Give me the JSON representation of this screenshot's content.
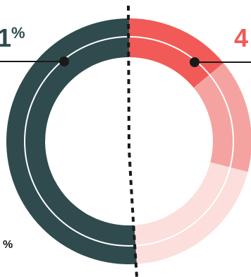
{
  "chart_data": {
    "type": "pie",
    "variant": "donut",
    "slices": [
      {
        "value": 51,
        "color": "#2f4b4e"
      },
      {
        "value": 14,
        "color": "#f25a57"
      },
      {
        "value": 15,
        "color": "#f5a3a1"
      },
      {
        "value": 20,
        "color": "#fcdedd"
      }
    ],
    "labels": {
      "left_value": "1",
      "left_unit": "%",
      "right_value": "4",
      "bottom_left": "%"
    },
    "colors": {
      "dark": "#2f4b4e",
      "accent": "#f25a57",
      "leader": "#1a1a1a"
    }
  }
}
